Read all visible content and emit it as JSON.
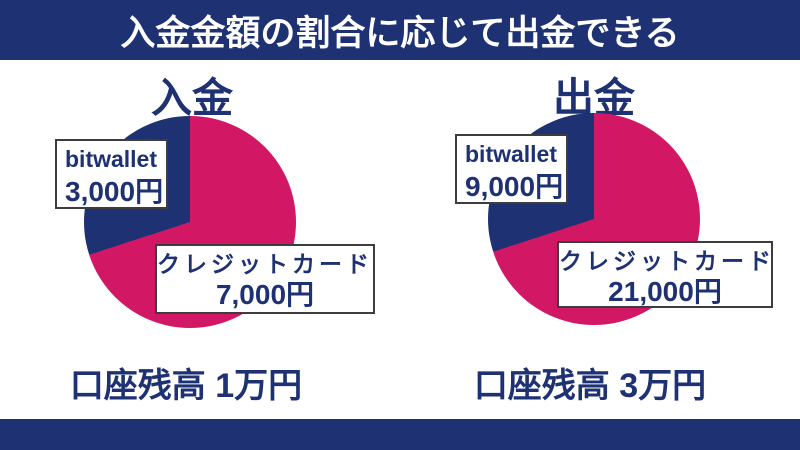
{
  "banner": {
    "title": "入金金額の割合に応じて出金できる"
  },
  "colors": {
    "navy": "#1e3173",
    "magenta": "#d21764",
    "background": "#ffffff",
    "label_border": "#3d3d3d",
    "banner_text": "#ffffff"
  },
  "charts": [
    {
      "heading": "入金",
      "balance": "口座残高 1万円",
      "slices": [
        {
          "label": "bitwallet",
          "amount": "3,000円",
          "value": 3000,
          "percent": 30,
          "color": "#1e3173"
        },
        {
          "label": "クレジットカード",
          "amount": "7,000円",
          "value": 7000,
          "percent": 70,
          "color": "#d21764"
        }
      ]
    },
    {
      "heading": "出金",
      "balance": "口座残高 3万円",
      "slices": [
        {
          "label": "bitwallet",
          "amount": "9,000円",
          "value": 9000,
          "percent": 30,
          "color": "#1e3173"
        },
        {
          "label": "クレジットカード",
          "amount": "21,000円",
          "value": 21000,
          "percent": 70,
          "color": "#d21764"
        }
      ]
    }
  ],
  "chart_data": [
    {
      "type": "pie",
      "title": "入金",
      "labels": [
        "bitwallet",
        "クレジットカード"
      ],
      "values": [
        3000,
        7000
      ],
      "unit": "円",
      "percents": [
        30,
        70
      ],
      "colors": [
        "#1e3173",
        "#d21764"
      ],
      "annotation": "口座残高 1万円",
      "layout": "magenta slice sweeps clockwise from 12 o'clock through 252°; navy slice fills upper-left 108°",
      "legend_position": "labels overlaid on slices"
    },
    {
      "type": "pie",
      "title": "出金",
      "labels": [
        "bitwallet",
        "クレジットカード"
      ],
      "values": [
        9000,
        21000
      ],
      "unit": "円",
      "percents": [
        30,
        70
      ],
      "colors": [
        "#1e3173",
        "#d21764"
      ],
      "annotation": "口座残高 3万円",
      "layout": "magenta slice sweeps clockwise from 12 o'clock through 252°; navy slice fills upper-left 108°",
      "legend_position": "labels overlaid on slices"
    }
  ]
}
